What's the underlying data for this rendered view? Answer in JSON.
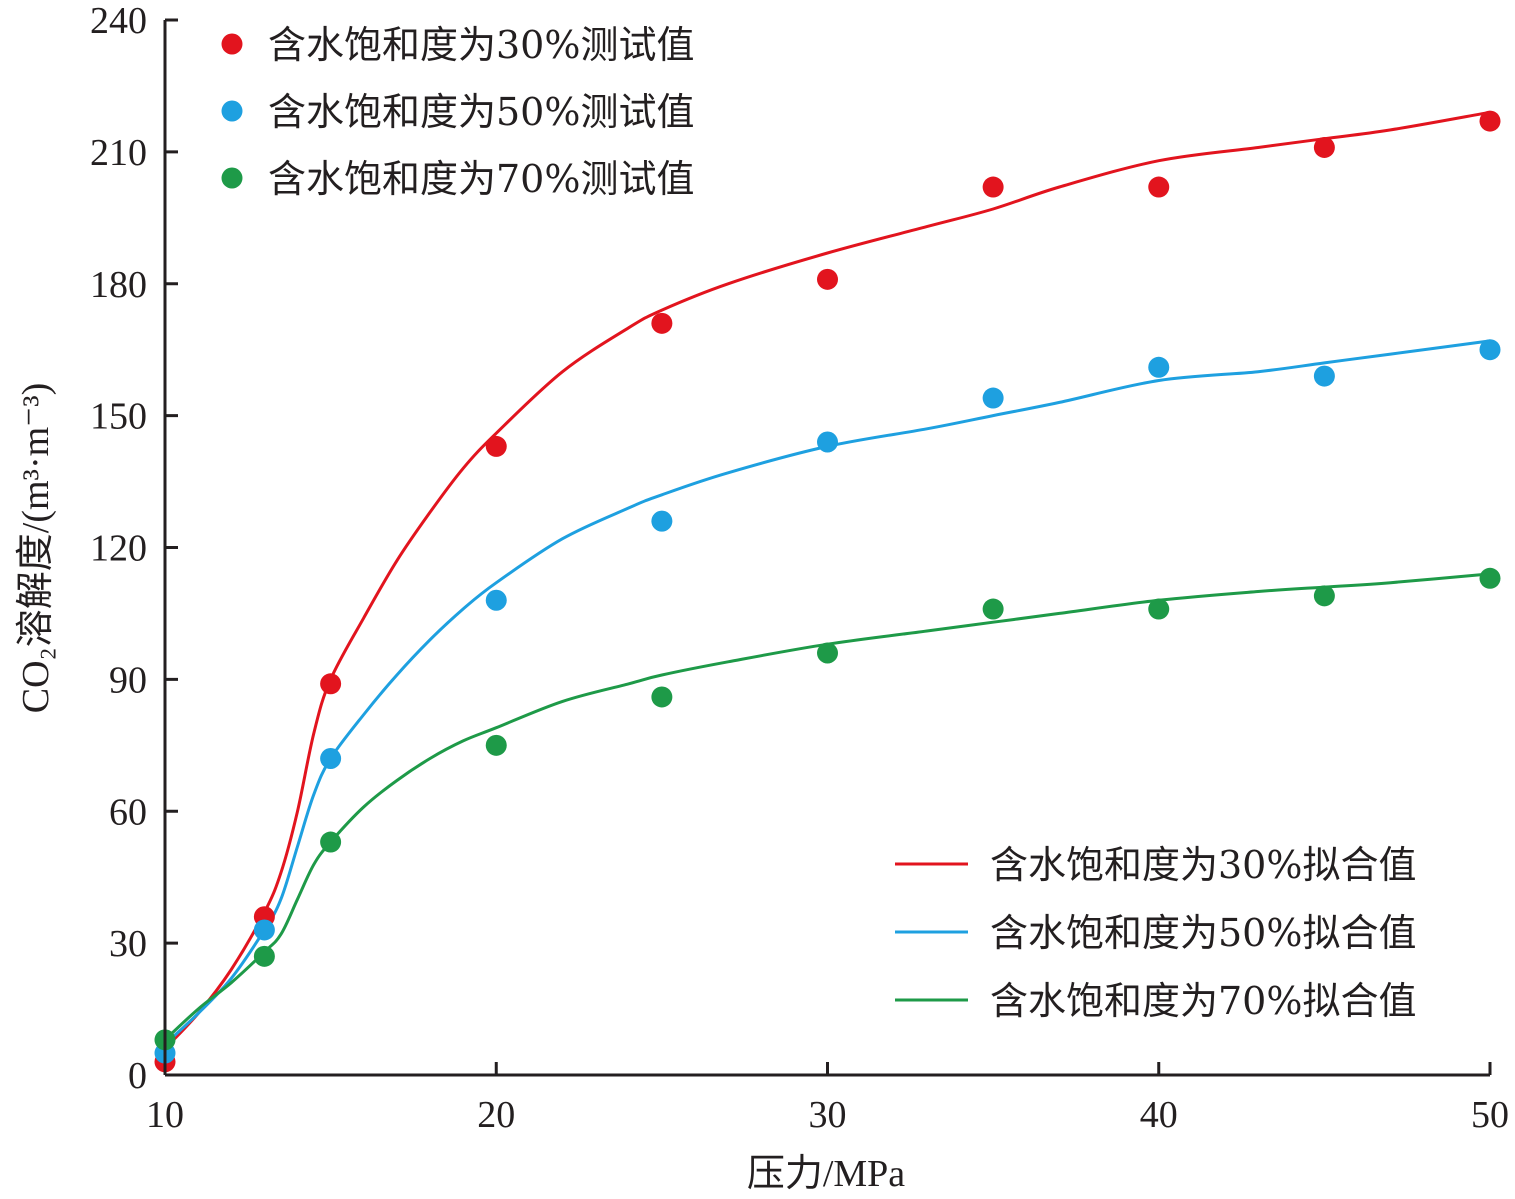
{
  "chart_data": {
    "type": "scatter",
    "xlabel": "压力/MPa",
    "ylabel": "CO₂溶解度/(m³·m⁻³)",
    "xlim": [
      10,
      50
    ],
    "ylim": [
      0,
      240
    ],
    "xticks": [
      10,
      20,
      30,
      40,
      50
    ],
    "yticks": [
      0,
      30,
      60,
      90,
      120,
      150,
      180,
      210,
      240
    ],
    "grid": false,
    "scatter_legend_position": "top-left",
    "line_legend_position": "bottom-right",
    "series": [
      {
        "name": "含水饱和度为30%测试值",
        "kind": "points",
        "color": "#e2141e",
        "x": [
          10,
          13,
          15,
          20,
          25,
          30,
          35,
          40,
          45,
          50
        ],
        "y": [
          3,
          36,
          89,
          143,
          171,
          181,
          202,
          202,
          211,
          217
        ]
      },
      {
        "name": "含水饱和度为50%测试值",
        "kind": "points",
        "color": "#1ea0e0",
        "x": [
          10,
          13,
          15,
          20,
          25,
          30,
          35,
          40,
          45,
          50
        ],
        "y": [
          5,
          33,
          72,
          108,
          126,
          144,
          154,
          161,
          159,
          165
        ]
      },
      {
        "name": "含水饱和度为70%测试值",
        "kind": "points",
        "color": "#1e9a48",
        "x": [
          10,
          13,
          15,
          20,
          25,
          30,
          35,
          40,
          45,
          50
        ],
        "y": [
          8,
          27,
          53,
          75,
          86,
          96,
          106,
          106,
          109,
          113
        ]
      },
      {
        "name": "含水饱和度为30%拟合值",
        "kind": "line",
        "color": "#e2141e",
        "x": [
          10,
          11,
          12,
          13,
          13.5,
          14,
          14.5,
          15,
          16,
          17,
          18,
          19,
          20,
          22,
          24,
          25,
          27,
          30,
          33,
          35,
          37,
          40,
          43,
          45,
          47,
          50
        ],
        "y": [
          6,
          14,
          24,
          37,
          46,
          60,
          78,
          90,
          104,
          117,
          128,
          138,
          146,
          160,
          170,
          174,
          180,
          187,
          193,
          197,
          202,
          208,
          211,
          213,
          215,
          219
        ]
      },
      {
        "name": "含水饱和度为50%拟合值",
        "kind": "line",
        "color": "#1ea0e0",
        "x": [
          10,
          11,
          12,
          13,
          13.5,
          14,
          14.5,
          15,
          16,
          17,
          18,
          19,
          20,
          22,
          24,
          25,
          27,
          30,
          33,
          35,
          37,
          40,
          43,
          45,
          47,
          50
        ],
        "y": [
          7,
          14,
          22,
          33,
          40,
          52,
          64,
          72,
          82,
          91,
          99,
          106,
          112,
          122,
          129,
          132,
          137,
          143,
          147,
          150,
          153,
          158,
          160,
          162,
          164,
          167
        ]
      },
      {
        "name": "含水饱和度为70%拟合值",
        "kind": "line",
        "color": "#1e9a48",
        "x": [
          10,
          11,
          12,
          13,
          13.5,
          14,
          14.5,
          15,
          16,
          17,
          18,
          19,
          20,
          22,
          24,
          25,
          27,
          30,
          33,
          35,
          37,
          40,
          43,
          45,
          47,
          50
        ],
        "y": [
          8,
          15,
          21,
          28,
          32,
          40,
          48,
          53,
          61,
          67,
          72,
          76,
          79,
          85,
          89,
          91,
          94,
          98,
          101,
          103,
          105,
          108,
          110,
          111,
          112,
          114
        ]
      }
    ]
  }
}
